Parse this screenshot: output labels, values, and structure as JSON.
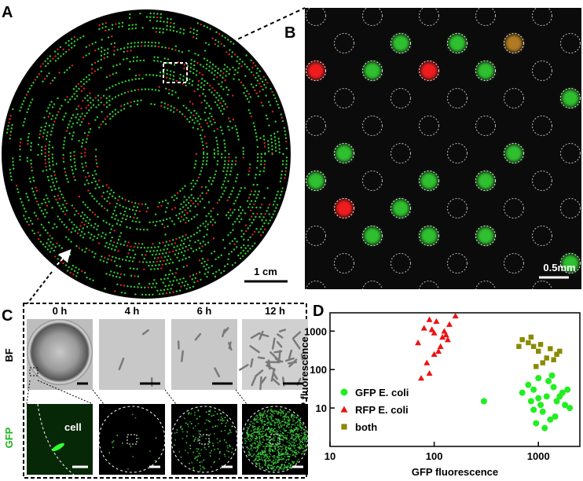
{
  "panel_labels": [
    "A",
    "B",
    "C",
    "D"
  ],
  "panel_a": {
    "scale_bar": "1 cm"
  },
  "panel_b": {
    "scale_bar": "0.5mm"
  },
  "panel_c": {
    "times": [
      "0 h",
      "4 h",
      "6 h",
      "12 h"
    ],
    "rows": [
      "BF",
      "GFP"
    ],
    "annotation": "cell"
  },
  "chart_data": {
    "type": "scatter",
    "xlabel": "GFP fluorescence",
    "ylabel": "RFP fluorescence",
    "xscale": "log",
    "yscale": "log",
    "xlim": [
      10,
      2500
    ],
    "ylim": [
      1,
      3000
    ],
    "xticks": [
      10,
      100,
      1000
    ],
    "yticks": [
      10,
      100,
      1000
    ],
    "legend": "center left",
    "series": [
      {
        "name": "GFP E. coli",
        "color": "#22ee22",
        "marker": "circle",
        "x": [
          1200,
          900,
          1500,
          1100,
          800,
          1800,
          1300,
          1000,
          700,
          2000,
          1400,
          950,
          1600,
          1150,
          850,
          1250,
          1700,
          1050,
          300,
          1350,
          900,
          1900,
          1000,
          1450
        ],
        "y": [
          20,
          30,
          15,
          8,
          40,
          12,
          5,
          60,
          25,
          10,
          35,
          4,
          20,
          3,
          15,
          50,
          25,
          12,
          15,
          70,
          9,
          30,
          18,
          6
        ]
      },
      {
        "name": "RFP E. coli",
        "color": "#ee1111",
        "marker": "triangle",
        "x": [
          100,
          80,
          120,
          90,
          140,
          70,
          110,
          95,
          130,
          85,
          75,
          105,
          160,
          115,
          90,
          125,
          100,
          135
        ],
        "y": [
          900,
          1200,
          700,
          2000,
          1500,
          500,
          300,
          1100,
          800,
          150,
          60,
          1800,
          2500,
          400,
          80,
          1000,
          250,
          600
        ]
      },
      {
        "name": "both",
        "color": "#8a8a00",
        "marker": "square",
        "x": [
          1000,
          800,
          1200,
          900,
          1500,
          700,
          1100,
          950,
          1300,
          850,
          1050,
          1400,
          650,
          1600
        ],
        "y": [
          300,
          500,
          200,
          400,
          250,
          600,
          150,
          120,
          350,
          700,
          450,
          180,
          400,
          300
        ]
      }
    ]
  }
}
